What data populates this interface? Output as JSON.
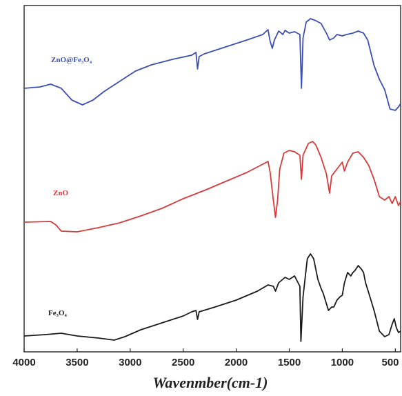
{
  "chart_data": {
    "type": "line",
    "title": "",
    "xlabel": "Wavenmber(cm-1)",
    "ylabel": "",
    "xlim": [
      4000,
      450
    ],
    "x_reversed": true,
    "y_ticks_shown": false,
    "grid": false,
    "xticks": [
      {
        "value": 4000,
        "label": "4000"
      },
      {
        "value": 3500,
        "label": "3500"
      },
      {
        "value": 3000,
        "label": "3000"
      },
      {
        "value": 2500,
        "label": "2500"
      },
      {
        "value": 2000,
        "label": "2000"
      },
      {
        "value": 1500,
        "label": "1500"
      },
      {
        "value": 1000,
        "label": "1000"
      },
      {
        "value": 500,
        "label": "500"
      }
    ],
    "series": [
      {
        "name": "ZnO@Fe3O4",
        "label_text": "ZnO@Fe₃O₄",
        "color": "#3a4fb5",
        "points": [
          [
            4000,
            128
          ],
          [
            3850,
            126
          ],
          [
            3750,
            122
          ],
          [
            3650,
            128
          ],
          [
            3550,
            145
          ],
          [
            3450,
            152
          ],
          [
            3350,
            145
          ],
          [
            3250,
            133
          ],
          [
            3100,
            118
          ],
          [
            2950,
            103
          ],
          [
            2800,
            94
          ],
          [
            2600,
            86
          ],
          [
            2420,
            80
          ],
          [
            2380,
            76
          ],
          [
            2365,
            100
          ],
          [
            2350,
            82
          ],
          [
            2300,
            78
          ],
          [
            2100,
            68
          ],
          [
            1900,
            58
          ],
          [
            1750,
            50
          ],
          [
            1700,
            43
          ],
          [
            1680,
            60
          ],
          [
            1660,
            70
          ],
          [
            1640,
            58
          ],
          [
            1600,
            45
          ],
          [
            1560,
            50
          ],
          [
            1540,
            44
          ],
          [
            1500,
            48
          ],
          [
            1450,
            46
          ],
          [
            1400,
            50
          ],
          [
            1385,
            128
          ],
          [
            1370,
            55
          ],
          [
            1340,
            32
          ],
          [
            1300,
            27
          ],
          [
            1250,
            30
          ],
          [
            1200,
            34
          ],
          [
            1150,
            48
          ],
          [
            1120,
            58
          ],
          [
            1080,
            55
          ],
          [
            1050,
            50
          ],
          [
            1000,
            52
          ],
          [
            960,
            50
          ],
          [
            900,
            48
          ],
          [
            850,
            45
          ],
          [
            800,
            48
          ],
          [
            760,
            58
          ],
          [
            700,
            95
          ],
          [
            650,
            115
          ],
          [
            600,
            130
          ],
          [
            550,
            158
          ],
          [
            500,
            160
          ],
          [
            470,
            155
          ],
          [
            450,
            150
          ]
        ]
      },
      {
        "name": "ZnO",
        "label_text": "ZnO",
        "color": "#d63a3a",
        "points": [
          [
            4000,
            322
          ],
          [
            3750,
            321
          ],
          [
            3700,
            326
          ],
          [
            3650,
            335
          ],
          [
            3500,
            336
          ],
          [
            3300,
            330
          ],
          [
            3100,
            323
          ],
          [
            2900,
            313
          ],
          [
            2700,
            302
          ],
          [
            2500,
            288
          ],
          [
            2300,
            276
          ],
          [
            2100,
            263
          ],
          [
            1900,
            250
          ],
          [
            1750,
            238
          ],
          [
            1700,
            234
          ],
          [
            1680,
            250
          ],
          [
            1650,
            290
          ],
          [
            1630,
            315
          ],
          [
            1610,
            290
          ],
          [
            1590,
            245
          ],
          [
            1550,
            222
          ],
          [
            1500,
            218
          ],
          [
            1450,
            220
          ],
          [
            1400,
            225
          ],
          [
            1385,
            260
          ],
          [
            1370,
            225
          ],
          [
            1320,
            208
          ],
          [
            1280,
            205
          ],
          [
            1250,
            210
          ],
          [
            1200,
            228
          ],
          [
            1150,
            252
          ],
          [
            1120,
            280
          ],
          [
            1100,
            255
          ],
          [
            1050,
            245
          ],
          [
            1000,
            235
          ],
          [
            980,
            248
          ],
          [
            950,
            235
          ],
          [
            900,
            222
          ],
          [
            850,
            220
          ],
          [
            800,
            228
          ],
          [
            750,
            240
          ],
          [
            700,
            260
          ],
          [
            650,
            285
          ],
          [
            600,
            290
          ],
          [
            560,
            285
          ],
          [
            530,
            295
          ],
          [
            500,
            285
          ],
          [
            470,
            298
          ],
          [
            450,
            292
          ]
        ]
      },
      {
        "name": "Fe3O4",
        "label_text": "Fe₃O₄",
        "color": "#1a1a1a",
        "points": [
          [
            4000,
            487
          ],
          [
            3800,
            485
          ],
          [
            3650,
            483
          ],
          [
            3500,
            487
          ],
          [
            3300,
            490
          ],
          [
            3150,
            493
          ],
          [
            3050,
            488
          ],
          [
            2900,
            478
          ],
          [
            2700,
            468
          ],
          [
            2500,
            458
          ],
          [
            2420,
            452
          ],
          [
            2380,
            450
          ],
          [
            2365,
            463
          ],
          [
            2350,
            452
          ],
          [
            2200,
            445
          ],
          [
            2000,
            435
          ],
          [
            1800,
            422
          ],
          [
            1700,
            413
          ],
          [
            1650,
            415
          ],
          [
            1630,
            422
          ],
          [
            1600,
            410
          ],
          [
            1540,
            402
          ],
          [
            1500,
            405
          ],
          [
            1450,
            400
          ],
          [
            1400,
            415
          ],
          [
            1390,
            495
          ],
          [
            1370,
            430
          ],
          [
            1330,
            375
          ],
          [
            1300,
            368
          ],
          [
            1270,
            375
          ],
          [
            1230,
            405
          ],
          [
            1200,
            418
          ],
          [
            1180,
            425
          ],
          [
            1150,
            440
          ],
          [
            1130,
            450
          ],
          [
            1100,
            445
          ],
          [
            1080,
            445
          ],
          [
            1050,
            435
          ],
          [
            1020,
            430
          ],
          [
            1000,
            428
          ],
          [
            980,
            410
          ],
          [
            950,
            395
          ],
          [
            920,
            400
          ],
          [
            900,
            395
          ],
          [
            880,
            392
          ],
          [
            850,
            385
          ],
          [
            820,
            390
          ],
          [
            800,
            395
          ],
          [
            780,
            410
          ],
          [
            750,
            425
          ],
          [
            700,
            450
          ],
          [
            650,
            480
          ],
          [
            600,
            488
          ],
          [
            560,
            485
          ],
          [
            530,
            470
          ],
          [
            510,
            462
          ],
          [
            490,
            475
          ],
          [
            470,
            482
          ],
          [
            450,
            480
          ]
        ]
      }
    ]
  }
}
